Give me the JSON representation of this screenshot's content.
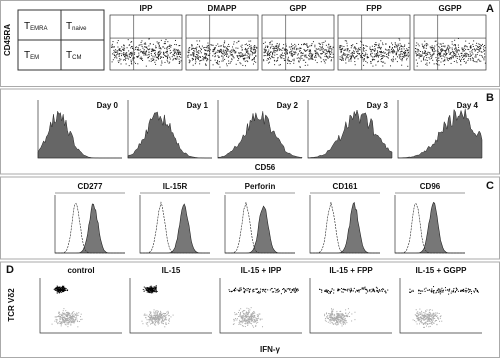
{
  "panels": [
    {
      "label": "A",
      "y_axis": "CD45RA",
      "x_axis": "CD27",
      "quadrants": [
        {
          "main": "T",
          "sub": "EMRA"
        },
        {
          "main": "T",
          "sub": "naive"
        },
        {
          "main": "T",
          "sub": "EM"
        },
        {
          "main": "T",
          "sub": "CM"
        }
      ],
      "titles": [
        "IPP",
        "DMAPP",
        "GPP",
        "FPP",
        "GGPP"
      ]
    },
    {
      "label": "B",
      "x_axis": "CD56",
      "titles": [
        "Day 0",
        "Day 1",
        "Day 2",
        "Day 3",
        "Day 4"
      ]
    },
    {
      "label": "C",
      "titles": [
        "CD277",
        "IL-15R",
        "Perforin",
        "CD161",
        "CD96"
      ]
    },
    {
      "label": "D",
      "y_axis": "TCR Vδ2",
      "x_axis": "IFN-γ",
      "titles": [
        "control",
        "IL-15",
        "IL-15 + IPP",
        "IL-15 + FPP",
        "IL-15 + GGPP"
      ]
    }
  ]
}
